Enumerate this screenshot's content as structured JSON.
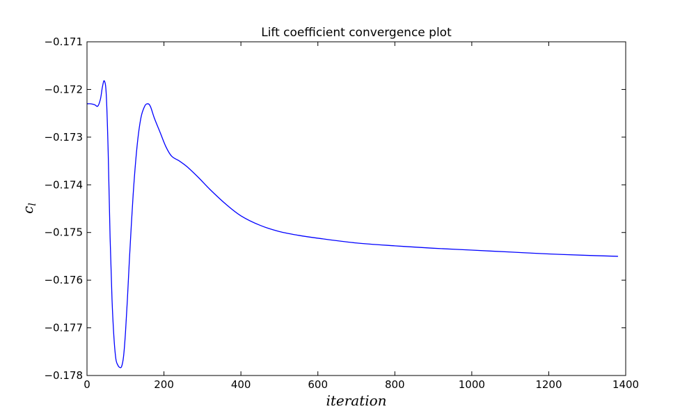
{
  "chart_data": {
    "type": "line",
    "title": "Lift coefficient convergence plot",
    "xlabel": "iteration",
    "ylabel": "c",
    "ylabel_subscript": "l",
    "xlim": [
      0,
      1400
    ],
    "ylim": [
      -0.178,
      -0.171
    ],
    "grid": false,
    "x_ticks": [
      0,
      200,
      400,
      600,
      800,
      1000,
      1200,
      1400
    ],
    "x_tick_labels": [
      "0",
      "200",
      "400",
      "600",
      "800",
      "1000",
      "1200",
      "1400"
    ],
    "y_ticks": [
      -0.171,
      -0.172,
      -0.173,
      -0.174,
      -0.175,
      -0.176,
      -0.177,
      -0.178
    ],
    "y_tick_labels": [
      "−0.171",
      "−0.172",
      "−0.173",
      "−0.174",
      "−0.175",
      "−0.176",
      "−0.177",
      "−0.178"
    ],
    "series": [
      {
        "color": "#0000ff",
        "x": [
          0,
          10,
          20,
          28,
          35,
          40,
          45,
          50,
          55,
          60,
          65,
          70,
          75,
          80,
          85,
          90,
          95,
          100,
          105,
          110,
          120,
          130,
          140,
          150,
          158,
          165,
          175,
          190,
          205,
          220,
          240,
          260,
          290,
          320,
          360,
          400,
          450,
          500,
          550,
          600,
          700,
          800,
          900,
          1000,
          1100,
          1200,
          1300,
          1380
        ],
        "y": [
          -0.1723,
          -0.1723,
          -0.17232,
          -0.17235,
          -0.1722,
          -0.17195,
          -0.17182,
          -0.1721,
          -0.1733,
          -0.1751,
          -0.1764,
          -0.1772,
          -0.17765,
          -0.17778,
          -0.17783,
          -0.17781,
          -0.1776,
          -0.1771,
          -0.1764,
          -0.1756,
          -0.1742,
          -0.1732,
          -0.1726,
          -0.17235,
          -0.1723,
          -0.17236,
          -0.1726,
          -0.1729,
          -0.1732,
          -0.1734,
          -0.1735,
          -0.17362,
          -0.17385,
          -0.1741,
          -0.1744,
          -0.17465,
          -0.17485,
          -0.17498,
          -0.17506,
          -0.17512,
          -0.17522,
          -0.17528,
          -0.17533,
          -0.17537,
          -0.17541,
          -0.17545,
          -0.17548,
          -0.1755
        ]
      }
    ]
  }
}
